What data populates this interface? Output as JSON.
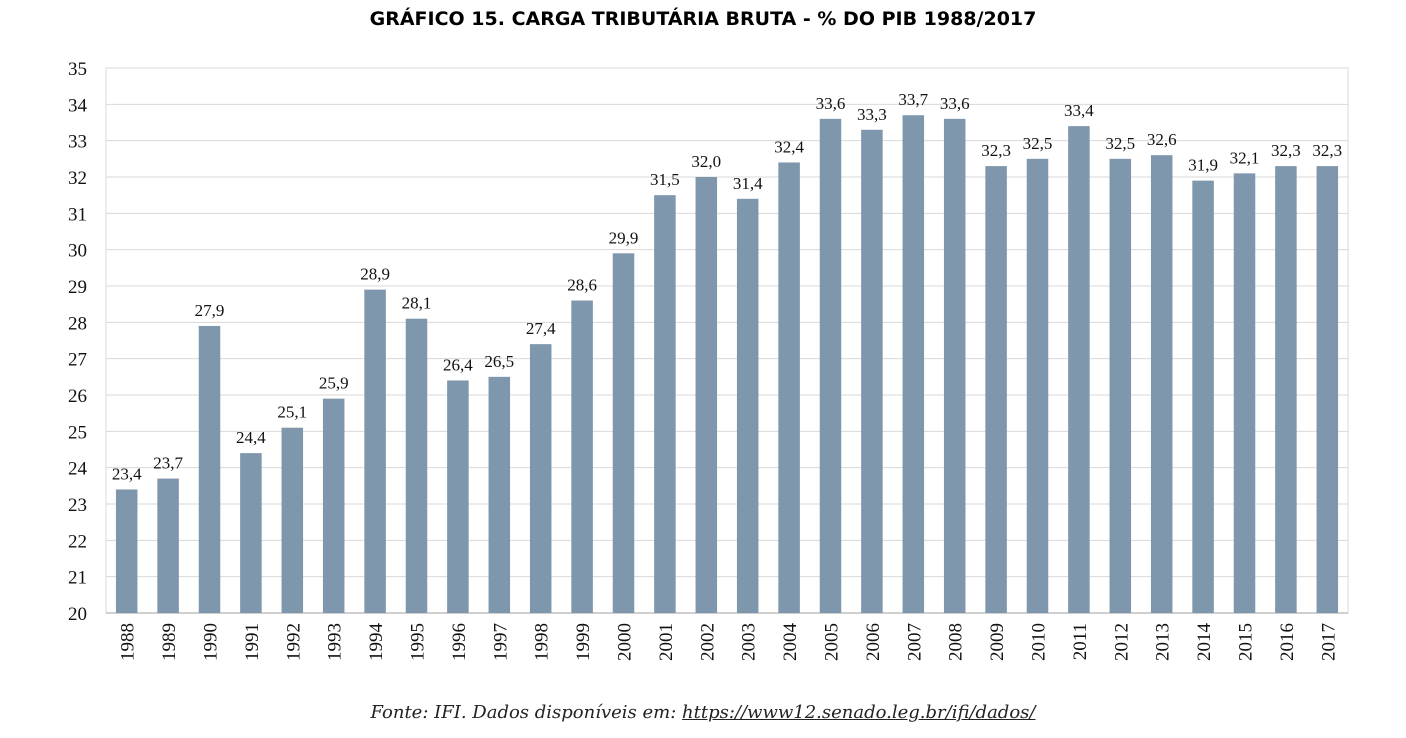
{
  "chart_data": {
    "type": "bar",
    "title": "GRÁFICO 15. CARGA TRIBUTÁRIA BRUTA - % DO PIB 1988/2017",
    "categories": [
      "1988",
      "1989",
      "1990",
      "1991",
      "1992",
      "1993",
      "1994",
      "1995",
      "1996",
      "1997",
      "1998",
      "1999",
      "2000",
      "2001",
      "2002",
      "2003",
      "2004",
      "2005",
      "2006",
      "2007",
      "2008",
      "2009",
      "2010",
      "2011",
      "2012",
      "2013",
      "2014",
      "2015",
      "2016",
      "2017"
    ],
    "values": [
      23.4,
      23.7,
      27.9,
      24.4,
      25.1,
      25.9,
      28.9,
      28.1,
      26.4,
      26.5,
      27.4,
      28.6,
      29.9,
      31.5,
      32.0,
      31.4,
      32.4,
      33.6,
      33.3,
      33.7,
      33.6,
      32.3,
      32.5,
      33.4,
      32.5,
      32.6,
      31.9,
      32.1,
      32.3,
      32.3
    ],
    "data_labels": [
      "23,4",
      "23,7",
      "27,9",
      "24,4",
      "25,1",
      "25,9",
      "28,9",
      "28,1",
      "26,4",
      "26,5",
      "27,4",
      "28,6",
      "29,9",
      "31,5",
      "32,0",
      "31,4",
      "32,4",
      "33,6",
      "33,3",
      "33,7",
      "33,6",
      "32,3",
      "32,5",
      "33,4",
      "32,5",
      "32,6",
      "31,9",
      "32,1",
      "32,3",
      "32,3"
    ],
    "ylim": [
      20,
      35
    ],
    "yticks": [
      20,
      21,
      22,
      23,
      24,
      25,
      26,
      27,
      28,
      29,
      30,
      31,
      32,
      33,
      34,
      35
    ],
    "xlabel": "",
    "ylabel": "",
    "grid": true,
    "bar_color": "#7f97ad",
    "grid_color": "#d9d9d9"
  },
  "source": {
    "prefix": "Fonte: IFI. Dados disponíveis em: ",
    "link_text": "https://www12.senado.leg.br/ifi/dados/"
  }
}
